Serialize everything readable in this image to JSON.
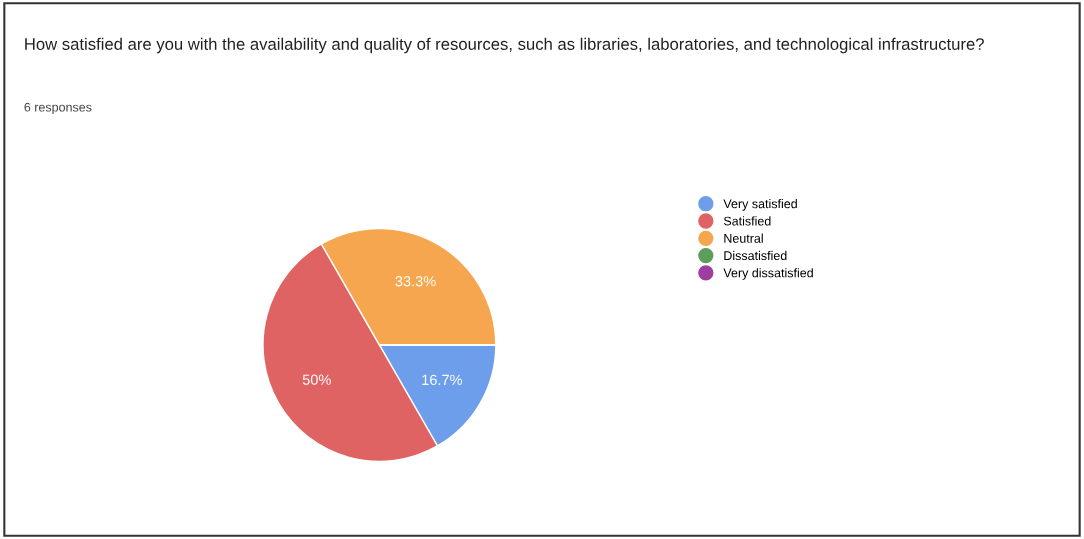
{
  "chart_data": {
    "type": "pie",
    "title": "How satisfied are you with the availability and quality of resources, such as libraries, laboratories, and technological infrastructure?",
    "subtitle": "6 responses",
    "categories": [
      "Very satisfied",
      "Satisfied",
      "Neutral",
      "Dissatisfied",
      "Very dissatisfied"
    ],
    "values": [
      16.7,
      50,
      33.3,
      0,
      0
    ],
    "value_labels": [
      "16.7%",
      "50%",
      "33.3%",
      null,
      null
    ],
    "colors": [
      "#6d9eeb",
      "#e06363",
      "#f6a64e",
      "#5c9e5c",
      "#9c3fa0"
    ],
    "legend": "right"
  }
}
